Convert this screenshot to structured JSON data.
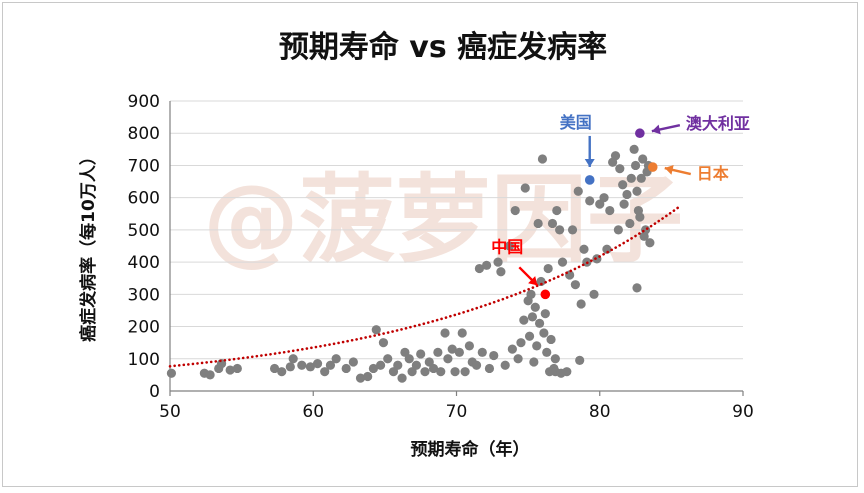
{
  "watermark": "@菠萝因子",
  "colors": {
    "points": "#7f7f7f",
    "trend": "#c00000",
    "us": "#4472c4",
    "australia": "#7030a0",
    "japan": "#ed7d31",
    "china": "#ff0000",
    "grid": "#d9d9d9"
  },
  "chart_data": {
    "type": "scatter",
    "title": "预期寿命 vs 癌症发病率",
    "xlabel": "预期寿命（年）",
    "ylabel": "癌症发病率（每10万人）",
    "xlim": [
      50,
      90
    ],
    "ylim": [
      0,
      900
    ],
    "xticks": [
      50,
      60,
      70,
      80,
      90
    ],
    "yticks": [
      0,
      100,
      200,
      300,
      400,
      500,
      600,
      700,
      800,
      900
    ],
    "trendline": {
      "type": "exponential",
      "a": 4.55,
      "b": 0.0565,
      "x_range": [
        50,
        85.7
      ],
      "style": "dotted"
    },
    "highlighted": [
      {
        "key": "us",
        "label": "美国",
        "x": 79.3,
        "y": 655
      },
      {
        "key": "australia",
        "label": "澳大利亚",
        "x": 82.8,
        "y": 800
      },
      {
        "key": "japan",
        "label": "日本",
        "x": 83.7,
        "y": 695
      },
      {
        "key": "china",
        "label": "中国",
        "x": 76.2,
        "y": 300
      }
    ],
    "points": [
      [
        50.1,
        55
      ],
      [
        52.4,
        55
      ],
      [
        52.8,
        50
      ],
      [
        53.4,
        70
      ],
      [
        53.6,
        85
      ],
      [
        54.2,
        65
      ],
      [
        54.7,
        70
      ],
      [
        57.3,
        70
      ],
      [
        57.8,
        60
      ],
      [
        58.4,
        75
      ],
      [
        58.6,
        100
      ],
      [
        59.2,
        80
      ],
      [
        59.8,
        75
      ],
      [
        60.3,
        85
      ],
      [
        60.8,
        60
      ],
      [
        61.2,
        80
      ],
      [
        61.6,
        100
      ],
      [
        62.3,
        70
      ],
      [
        62.8,
        90
      ],
      [
        63.3,
        40
      ],
      [
        63.8,
        45
      ],
      [
        64.2,
        70
      ],
      [
        64.4,
        190
      ],
      [
        64.7,
        80
      ],
      [
        64.9,
        150
      ],
      [
        65.2,
        100
      ],
      [
        65.6,
        60
      ],
      [
        65.9,
        80
      ],
      [
        66.2,
        40
      ],
      [
        66.4,
        120
      ],
      [
        66.7,
        100
      ],
      [
        66.9,
        60
      ],
      [
        67.2,
        80
      ],
      [
        67.5,
        115
      ],
      [
        67.8,
        60
      ],
      [
        68.1,
        90
      ],
      [
        68.4,
        70
      ],
      [
        68.7,
        120
      ],
      [
        68.9,
        60
      ],
      [
        69.2,
        180
      ],
      [
        69.4,
        100
      ],
      [
        69.7,
        130
      ],
      [
        69.9,
        60
      ],
      [
        70.2,
        120
      ],
      [
        70.4,
        180
      ],
      [
        70.6,
        60
      ],
      [
        70.9,
        140
      ],
      [
        71.1,
        90
      ],
      [
        71.4,
        80
      ],
      [
        71.6,
        380
      ],
      [
        71.8,
        120
      ],
      [
        72.1,
        390
      ],
      [
        72.3,
        70
      ],
      [
        72.6,
        110
      ],
      [
        72.9,
        400
      ],
      [
        73.1,
        370
      ],
      [
        73.4,
        80
      ],
      [
        73.7,
        450
      ],
      [
        73.9,
        130
      ],
      [
        74.1,
        560
      ],
      [
        74.3,
        100
      ],
      [
        74.5,
        150
      ],
      [
        74.7,
        220
      ],
      [
        74.8,
        630
      ],
      [
        75.0,
        280
      ],
      [
        75.1,
        170
      ],
      [
        75.2,
        300
      ],
      [
        75.3,
        230
      ],
      [
        75.4,
        90
      ],
      [
        75.5,
        260
      ],
      [
        75.6,
        140
      ],
      [
        75.7,
        520
      ],
      [
        75.8,
        210
      ],
      [
        75.9,
        340
      ],
      [
        76.0,
        720
      ],
      [
        76.1,
        180
      ],
      [
        76.2,
        240
      ],
      [
        76.3,
        120
      ],
      [
        76.4,
        380
      ],
      [
        76.5,
        60
      ],
      [
        76.6,
        160
      ],
      [
        76.7,
        520
      ],
      [
        76.8,
        70
      ],
      [
        76.9,
        100
      ],
      [
        77.0,
        560
      ],
      [
        77.2,
        500
      ],
      [
        77.4,
        400
      ],
      [
        77.7,
        60
      ],
      [
        77.9,
        360
      ],
      [
        78.1,
        500
      ],
      [
        78.3,
        330
      ],
      [
        78.5,
        620
      ],
      [
        78.6,
        95
      ],
      [
        78.7,
        270
      ],
      [
        78.9,
        440
      ],
      [
        79.1,
        400
      ],
      [
        79.3,
        590
      ],
      [
        79.6,
        300
      ],
      [
        79.8,
        410
      ],
      [
        80.0,
        580
      ],
      [
        80.3,
        600
      ],
      [
        80.5,
        440
      ],
      [
        80.7,
        560
      ],
      [
        80.9,
        710
      ],
      [
        81.1,
        730
      ],
      [
        81.3,
        500
      ],
      [
        81.4,
        690
      ],
      [
        81.6,
        640
      ],
      [
        81.7,
        580
      ],
      [
        81.9,
        610
      ],
      [
        82.1,
        520
      ],
      [
        82.2,
        660
      ],
      [
        82.4,
        750
      ],
      [
        82.5,
        700
      ],
      [
        82.6,
        620
      ],
      [
        82.7,
        560
      ],
      [
        82.8,
        540
      ],
      [
        82.9,
        660
      ],
      [
        83.0,
        720
      ],
      [
        83.1,
        480
      ],
      [
        83.2,
        500
      ],
      [
        83.3,
        680
      ],
      [
        83.4,
        700
      ],
      [
        83.5,
        460
      ],
      [
        82.6,
        320
      ],
      [
        76.9,
        60
      ],
      [
        77.3,
        55
      ]
    ]
  }
}
